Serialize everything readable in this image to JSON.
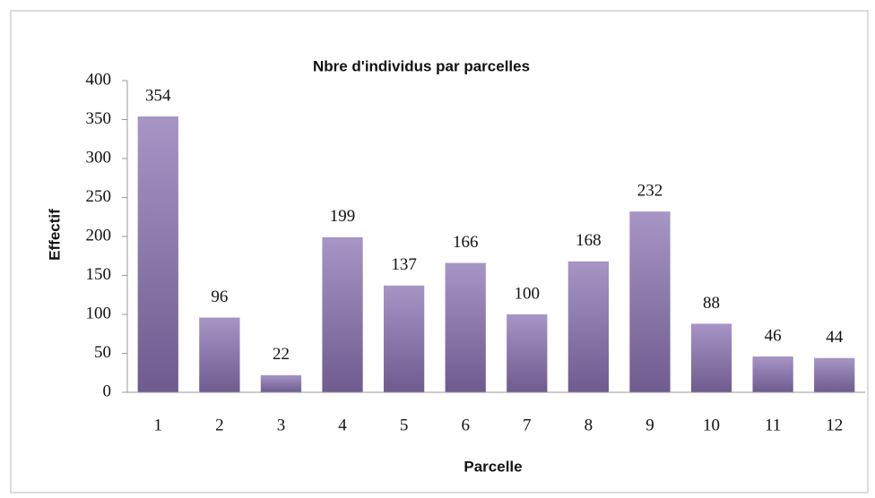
{
  "chart_data": {
    "type": "bar",
    "title": "Nbre d'individus par parcelles",
    "x_label": "Parcelle",
    "y_label": "Effectif",
    "categories": [
      "1",
      "2",
      "3",
      "4",
      "5",
      "6",
      "7",
      "8",
      "9",
      "10",
      "11",
      "12"
    ],
    "values": [
      354,
      96,
      22,
      199,
      137,
      166,
      100,
      168,
      232,
      88,
      46,
      44
    ],
    "color": "#9b87bb",
    "ylim": [
      0,
      400
    ],
    "yticks": [
      0,
      50,
      100,
      150,
      200,
      250,
      300,
      350,
      400
    ],
    "grid": false
  }
}
